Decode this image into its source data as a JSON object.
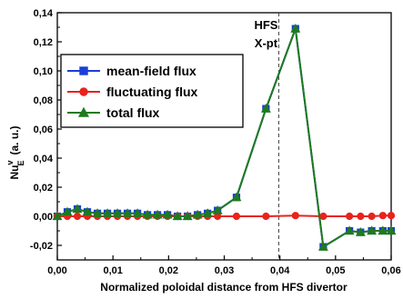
{
  "chart_data": {
    "type": "line",
    "xlabel": "Normalized poloidal distance from HFS divertor",
    "ylabel": "Nu",
    "ylabel_sup": "v",
    "ylabel_sub": "E",
    "ylabel_unit": "(a. u.)",
    "xlim": [
      0.0,
      0.06
    ],
    "ylim": [
      -0.03,
      0.14
    ],
    "x_ticks": [
      0.0,
      0.01,
      0.02,
      0.03,
      0.04,
      0.05,
      0.06
    ],
    "x_tick_labels": [
      "0,00",
      "0,01",
      "0,02",
      "0,03",
      "0,04",
      "0,05",
      "0,06"
    ],
    "y_ticks": [
      -0.02,
      0.0,
      0.02,
      0.04,
      0.06,
      0.08,
      0.1,
      0.12,
      0.14
    ],
    "y_tick_labels": [
      "-0,02",
      "0,00",
      "0,02",
      "0,04",
      "0,06",
      "0,08",
      "0,10",
      "0,12",
      "0,14"
    ],
    "grid": false,
    "legend_position": "top-left",
    "annotation": {
      "line1": "HFS",
      "line2": "X-pt",
      "x": 0.0398
    },
    "series": [
      {
        "name": "mean-field flux",
        "color": "#1a3fd6",
        "marker": "square",
        "x": [
          0.0,
          0.0018,
          0.0036,
          0.0054,
          0.0072,
          0.009,
          0.0108,
          0.0126,
          0.0144,
          0.0162,
          0.018,
          0.0198,
          0.0216,
          0.0234,
          0.0252,
          0.027,
          0.0288,
          0.0322,
          0.0375,
          0.0428,
          0.0478,
          0.0525,
          0.0545,
          0.0565,
          0.0585,
          0.06
        ],
        "y": [
          0.0,
          0.003,
          0.005,
          0.003,
          0.002,
          0.002,
          0.002,
          0.002,
          0.002,
          0.001,
          0.001,
          0.001,
          0.0,
          0.0,
          0.001,
          0.002,
          0.004,
          0.013,
          0.074,
          0.129,
          -0.021,
          -0.01,
          -0.011,
          -0.01,
          -0.01,
          -0.01
        ]
      },
      {
        "name": "fluctuating flux",
        "color": "#e8231c",
        "marker": "circle",
        "x": [
          0.0,
          0.0018,
          0.0036,
          0.0054,
          0.0072,
          0.009,
          0.0108,
          0.0126,
          0.0144,
          0.0162,
          0.018,
          0.0198,
          0.0216,
          0.0234,
          0.0252,
          0.027,
          0.0288,
          0.0322,
          0.0375,
          0.0428,
          0.0478,
          0.0525,
          0.0545,
          0.0565,
          0.0585,
          0.06
        ],
        "y": [
          0.0,
          0.0,
          0.0,
          0.0,
          0.0,
          0.0,
          0.0,
          0.0,
          0.0,
          0.0,
          0.0,
          0.0,
          0.0,
          0.0,
          0.0,
          0.0,
          0.0,
          0.0,
          0.0,
          0.0005,
          0.0,
          0.0,
          0.0,
          0.0,
          0.0005,
          0.0005
        ]
      },
      {
        "name": "total flux",
        "color": "#1f7a1f",
        "marker": "triangle",
        "x": [
          0.0,
          0.0018,
          0.0036,
          0.0054,
          0.0072,
          0.009,
          0.0108,
          0.0126,
          0.0144,
          0.0162,
          0.018,
          0.0198,
          0.0216,
          0.0234,
          0.0252,
          0.027,
          0.0288,
          0.0322,
          0.0375,
          0.0428,
          0.0478,
          0.0525,
          0.0545,
          0.0565,
          0.0585,
          0.06
        ],
        "y": [
          0.0,
          0.003,
          0.005,
          0.003,
          0.002,
          0.002,
          0.002,
          0.002,
          0.002,
          0.001,
          0.001,
          0.001,
          0.0,
          0.0,
          0.001,
          0.002,
          0.004,
          0.013,
          0.074,
          0.129,
          -0.021,
          -0.01,
          -0.011,
          -0.01,
          -0.01,
          -0.01
        ]
      }
    ]
  }
}
